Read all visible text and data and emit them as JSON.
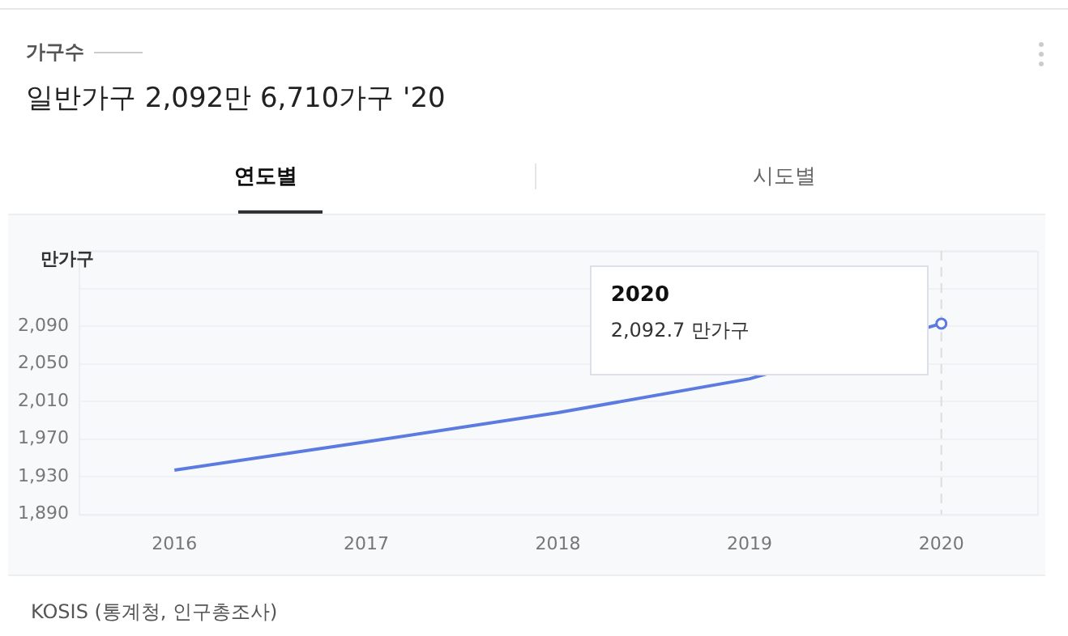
{
  "chart_data": {
    "type": "line",
    "title": "가구수",
    "subtitle": "일반가구 2,092만 6,710가구 '20",
    "ylabel": "만가구",
    "categories": [
      "2016",
      "2017",
      "2018",
      "2019",
      "2020"
    ],
    "series": [
      {
        "color": "#5b7be0",
        "values": [
          1937,
          1967,
          1998,
          2034,
          2092.7
        ]
      }
    ],
    "ylim": [
      1890,
      2170
    ],
    "yticks": [
      {
        "value": 1890,
        "label": "1,890"
      },
      {
        "value": 1930,
        "label": "1,930"
      },
      {
        "value": 1970,
        "label": "1,970"
      },
      {
        "value": 2010,
        "label": "2,010"
      },
      {
        "value": 2050,
        "label": "2,050"
      },
      {
        "value": 2090,
        "label": "2,090"
      },
      {
        "value": 2130,
        "label": null
      },
      {
        "value": 2170,
        "label": null
      }
    ],
    "ref_lines": [
      {
        "axis": "x",
        "value": "2020",
        "color": "#dddddd",
        "line_style": "dashed"
      }
    ],
    "annotations": [
      "연도별",
      "시도별",
      "2020",
      "2,092.7 만가구",
      "KOSIS (통계청, 인구총조사)"
    ],
    "grid": "y",
    "legend": false,
    "marker": "none",
    "line_style": "solid"
  }
}
